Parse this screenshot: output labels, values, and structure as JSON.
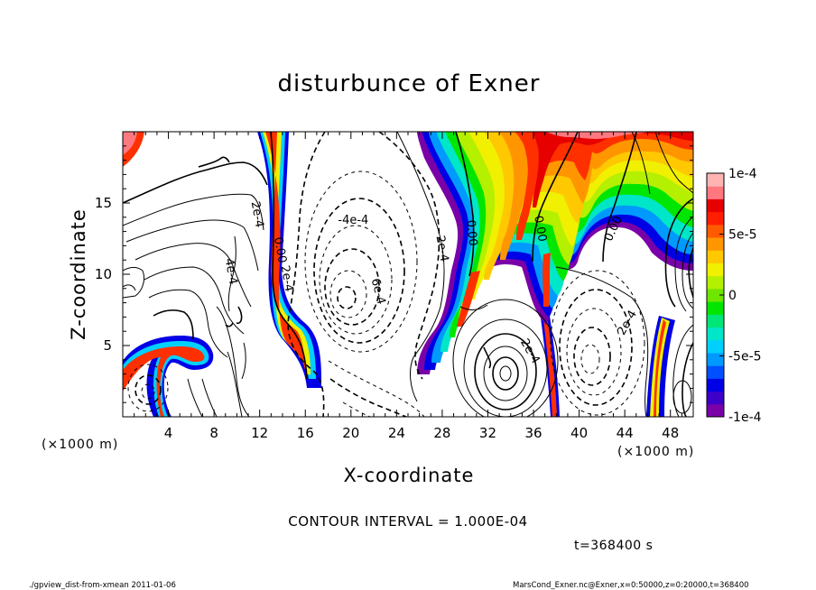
{
  "chart_data": {
    "type": "heatmap",
    "title": "disturbunce of Exner",
    "xlabel": "X-coordinate",
    "ylabel": "Z-coordinate",
    "x_unit": "(×1000 m)",
    "y_unit": "(×1000 m)",
    "xlim": [
      0,
      50
    ],
    "ylim": [
      0,
      20
    ],
    "x_ticks": [
      4,
      8,
      12,
      16,
      20,
      24,
      28,
      32,
      36,
      40,
      44,
      48
    ],
    "y_ticks": [
      5,
      10,
      15
    ],
    "colorbar": {
      "range": [
        -0.0001,
        0.0001
      ],
      "ticks": [
        {
          "value": 0.0001,
          "label": "1e-4"
        },
        {
          "value": 5e-05,
          "label": "5e-5"
        },
        {
          "value": 0,
          "label": "0"
        },
        {
          "value": -5e-05,
          "label": "-5e-5"
        },
        {
          "value": -0.0001,
          "label": "-1e-4"
        }
      ],
      "colors": [
        "#7a00a8",
        "#3c00c8",
        "#0000e6",
        "#0050ff",
        "#009aff",
        "#00d0ff",
        "#00e6c8",
        "#00e678",
        "#00e600",
        "#6ee600",
        "#b4f000",
        "#f0f000",
        "#ffc800",
        "#ff9600",
        "#ff5a00",
        "#ff1e00",
        "#e60000",
        "#ff7880",
        "#ffb4b4"
      ]
    },
    "contour_labels": [
      {
        "text": "2e-4",
        "x": 11.8,
        "z": 14.2,
        "rotation": 80
      },
      {
        "text": "4e-4",
        "x": 9.5,
        "z": 10.2,
        "rotation": 80
      },
      {
        "text": "0.00",
        "x": 13.8,
        "z": 11.7,
        "rotation": 80
      },
      {
        "text": "2e-4",
        "x": 14.4,
        "z": 9.7,
        "rotation": 80
      },
      {
        "text": "-4e-4",
        "x": 20.2,
        "z": 13.8,
        "rotation": 0
      },
      {
        "text": "6e-4",
        "x": 22.4,
        "z": 8.8,
        "rotation": 75
      },
      {
        "text": "2e-4",
        "x": 28.0,
        "z": 11.8,
        "rotation": 80
      },
      {
        "text": "0.00",
        "x": 30.6,
        "z": 12.9,
        "rotation": 85
      },
      {
        "text": "0.00",
        "x": 36.6,
        "z": 13.2,
        "rotation": 80
      },
      {
        "text": "0.00",
        "x": 43.0,
        "z": 13.2,
        "rotation": -65
      },
      {
        "text": "2e-4",
        "x": 35.7,
        "z": 4.6,
        "rotation": 60
      },
      {
        "text": "2e-4",
        "x": 44.2,
        "z": 6.6,
        "rotation": -60
      }
    ],
    "contour_interval": "CONTOUR INTERVAL = 1.000E-04"
  },
  "time_label": "t=368400 s",
  "footer": {
    "left": "./gpview_dist-from-xmean  2011-01-06",
    "right": "MarsCond_Exner.nc@Exner,x=0:50000,z=0:20000,t=368400"
  }
}
